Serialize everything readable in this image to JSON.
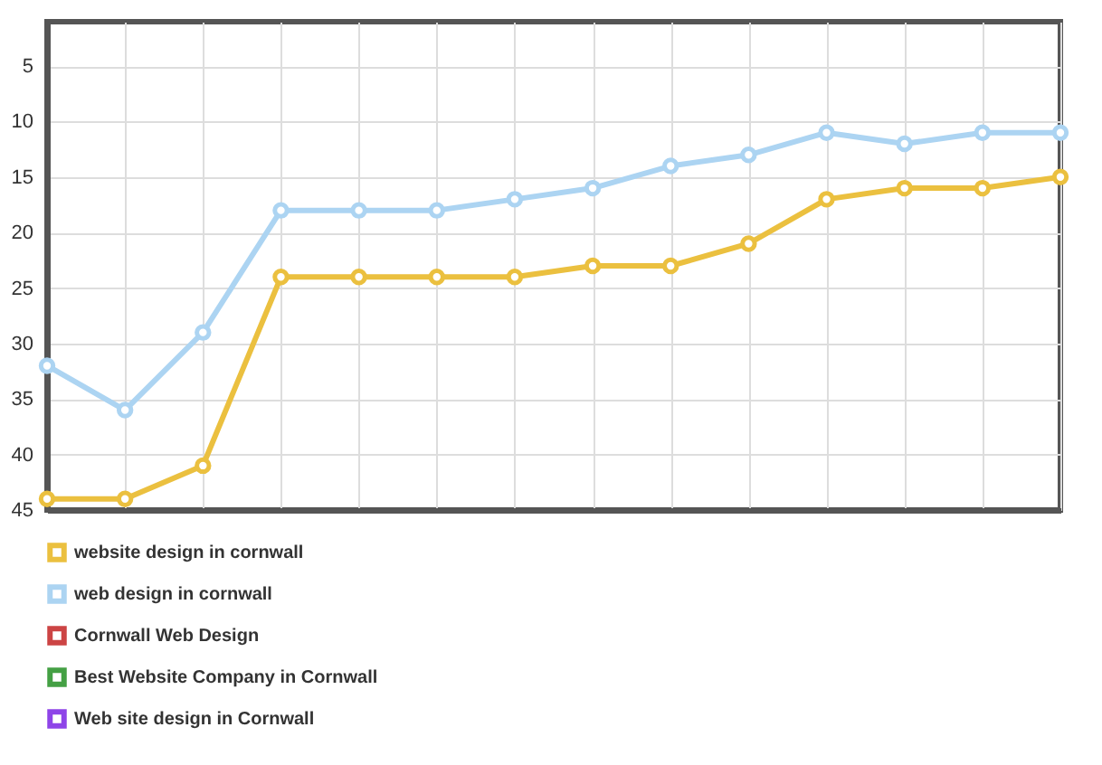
{
  "chart_data": {
    "type": "line",
    "categories": [
      null,
      null,
      null,
      null,
      null,
      null,
      null,
      null,
      null,
      null,
      null,
      null,
      null,
      null
    ],
    "series": [
      {
        "name": "website design in cornwall",
        "color": "#ebc03f",
        "values": [
          44,
          44,
          41,
          24,
          24,
          24,
          24,
          23,
          23,
          21,
          17,
          16,
          16,
          15
        ]
      },
      {
        "name": "web design in cornwall",
        "color": "#acd4f2",
        "values": [
          32,
          36,
          29,
          18,
          18,
          18,
          17,
          16,
          14,
          13,
          11,
          12,
          11,
          11
        ]
      },
      {
        "name": "Cornwall Web Design",
        "color": "#cc4444",
        "values": [
          null,
          null,
          null,
          null,
          null,
          null,
          null,
          null,
          null,
          null,
          null,
          null,
          null,
          null
        ]
      },
      {
        "name": "Best Website Company in Cornwall",
        "color": "#44a044",
        "values": [
          null,
          null,
          null,
          null,
          null,
          null,
          null,
          null,
          null,
          null,
          null,
          null,
          null,
          null
        ]
      },
      {
        "name": "Web site design in Cornwall",
        "color": "#8e44e8",
        "values": [
          null,
          null,
          null,
          null,
          null,
          null,
          null,
          null,
          null,
          null,
          null,
          null,
          null,
          null
        ]
      }
    ],
    "ylim": [
      45,
      1
    ],
    "yticks": [
      5,
      10,
      15,
      20,
      25,
      30,
      35,
      40,
      45
    ],
    "grid": true,
    "legend": "bottom",
    "marker": "circle",
    "tick_labels": "y"
  }
}
